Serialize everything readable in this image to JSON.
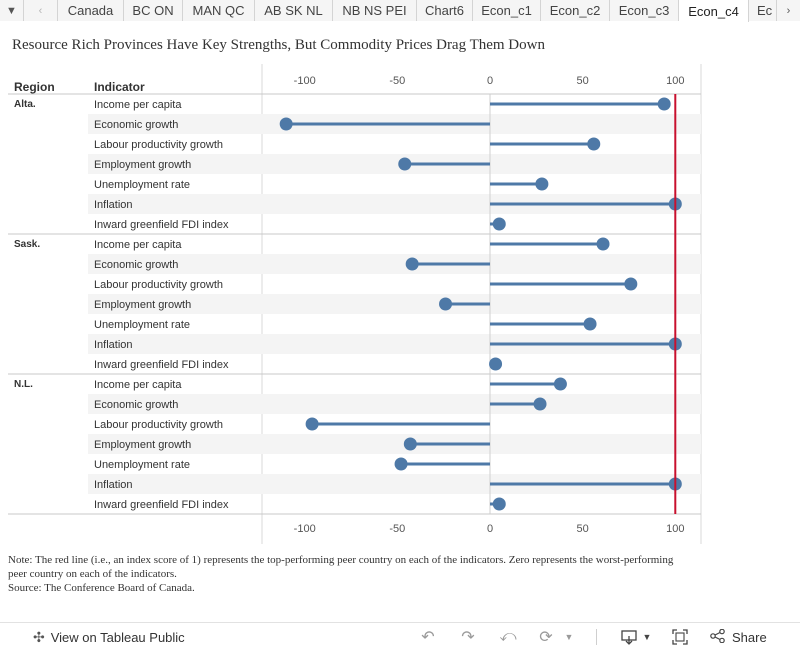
{
  "tabs": {
    "items": [
      "Canada",
      "BC ON",
      "MAN QC",
      "AB SK NL",
      "NB NS PEI",
      "Chart6",
      "Econ_c1",
      "Econ_c2",
      "Econ_c3",
      "Econ_c4",
      "Ec"
    ],
    "active_index": 9
  },
  "title": "Resource Rich Provinces Have Key Strengths, But Commodity Prices Drag Them Down",
  "chart_data": {
    "type": "lollipop",
    "headers": {
      "region": "Region",
      "indicator": "Indicator"
    },
    "x_ticks": [
      -100,
      -50,
      0,
      50,
      100
    ],
    "xlim": [
      -124,
      113
    ],
    "reference_line": {
      "value": 100,
      "color": "#c8102e"
    },
    "series_color": "#4e79a7",
    "groups": [
      {
        "region": "Alta.",
        "rows": [
          {
            "indicator": "Income per capita",
            "value": 94
          },
          {
            "indicator": "Economic growth",
            "value": -110
          },
          {
            "indicator": "Labour productivity growth",
            "value": 56
          },
          {
            "indicator": "Employment growth",
            "value": -46
          },
          {
            "indicator": "Unemployment rate",
            "value": 28
          },
          {
            "indicator": "Inflation",
            "value": 100
          },
          {
            "indicator": "Inward greenfield FDI index",
            "value": 5
          }
        ]
      },
      {
        "region": "Sask.",
        "rows": [
          {
            "indicator": "Income per capita",
            "value": 61
          },
          {
            "indicator": "Economic growth",
            "value": -42
          },
          {
            "indicator": "Labour productivity growth",
            "value": 76
          },
          {
            "indicator": "Employment growth",
            "value": -24
          },
          {
            "indicator": "Unemployment rate",
            "value": 54
          },
          {
            "indicator": "Inflation",
            "value": 100
          },
          {
            "indicator": "Inward greenfield FDI index",
            "value": 3
          }
        ]
      },
      {
        "region": "N.L.",
        "rows": [
          {
            "indicator": "Income per capita",
            "value": 38
          },
          {
            "indicator": "Economic growth",
            "value": 27
          },
          {
            "indicator": "Labour productivity growth",
            "value": -96
          },
          {
            "indicator": "Employment growth",
            "value": -43
          },
          {
            "indicator": "Unemployment rate",
            "value": -48
          },
          {
            "indicator": "Inflation",
            "value": 100
          },
          {
            "indicator": "Inward greenfield FDI index",
            "value": 5
          }
        ]
      }
    ]
  },
  "notes": {
    "note": "Note: The red line (i.e., an index score of 1) represents the top-performing peer country on each of the indicators. Zero represents the worst-performing peer country on each of the indicators.",
    "source": "Source: The Conference Board of Canada."
  },
  "footer": {
    "view_label": "View on Tableau Public",
    "share_label": "Share",
    "icons": [
      "tableau-icon",
      "undo-icon",
      "redo-icon",
      "revert-icon",
      "refresh-icon",
      "download-icon",
      "fullscreen-icon",
      "share-icon"
    ]
  }
}
